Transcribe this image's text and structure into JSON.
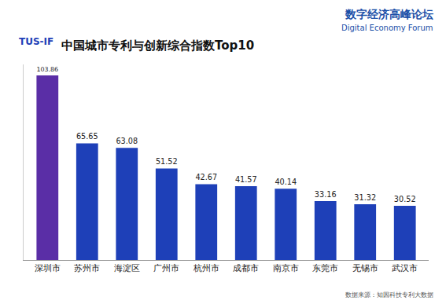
{
  "chart_data": {
    "type": "bar",
    "title": "中国城市专利与创新综合指数Top10",
    "categories": [
      "深圳市",
      "苏州市",
      "海淀区",
      "广州市",
      "杭州市",
      "成都市",
      "南京市",
      "东莞市",
      "无锡市",
      "武汉市"
    ],
    "values": [
      103.86,
      65.65,
      63.08,
      51.52,
      42.67,
      41.57,
      40.14,
      33.16,
      31.32,
      30.52
    ],
    "colors": [
      "#5a2ea6",
      "#1e40b8",
      "#1e40b8",
      "#1e40b8",
      "#1e40b8",
      "#1e40b8",
      "#1e40b8",
      "#1e40b8",
      "#1e40b8",
      "#1e40b8"
    ],
    "ylim": [
      0,
      110
    ],
    "yticks": [],
    "grid": false,
    "data_labels": true,
    "tick_labels": "x",
    "annotations": [
      "数字经济高峰论坛",
      "Digital Economy Forum",
      "TUS-IF",
      "数据来源：知因科技专利大数据"
    ]
  }
}
